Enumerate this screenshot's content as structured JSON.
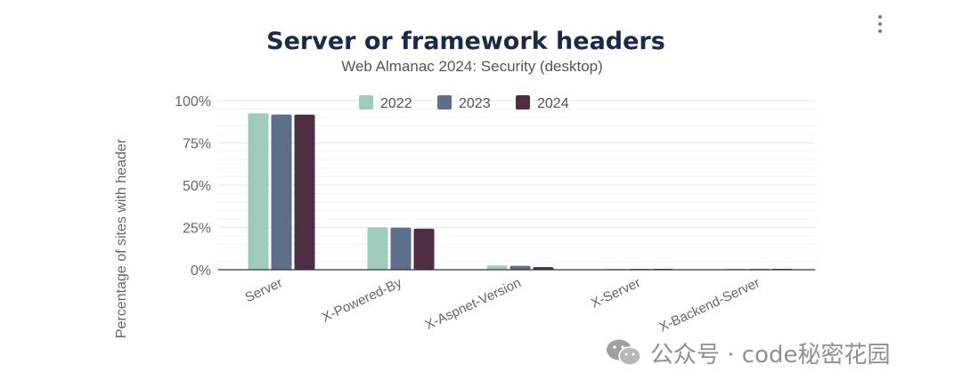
{
  "chart_data": {
    "type": "bar",
    "title": "Server or framework headers",
    "subtitle": "Web Almanac 2024: Security (desktop)",
    "xlabel": "",
    "ylabel": "Percentage of sites with header",
    "ylim": [
      0,
      100
    ],
    "yticks": [
      "0%",
      "25%",
      "50%",
      "75%",
      "100%"
    ],
    "ytick_values": [
      0,
      25,
      50,
      75,
      100
    ],
    "categories": [
      "Server",
      "X-Powered-By",
      "X-Aspnet-Version",
      "X-Server",
      "X-Backend-Server"
    ],
    "series": [
      {
        "name": "2022",
        "color": "#9ecbba",
        "values": [
          92.5,
          25.0,
          2.5,
          0.3,
          0.3
        ]
      },
      {
        "name": "2023",
        "color": "#5e6f8d",
        "values": [
          91.8,
          24.9,
          2.3,
          0.3,
          0.3
        ]
      },
      {
        "name": "2024",
        "color": "#4f2d42",
        "values": [
          91.7,
          24.3,
          1.5,
          0.2,
          0.2
        ]
      }
    ],
    "legend_position": "top-center",
    "grid": true
  },
  "watermark": {
    "text": "公众号 · code秘密花园",
    "icon": "wechat-icon"
  },
  "menu": {
    "icon": "kebab-menu-icon"
  }
}
